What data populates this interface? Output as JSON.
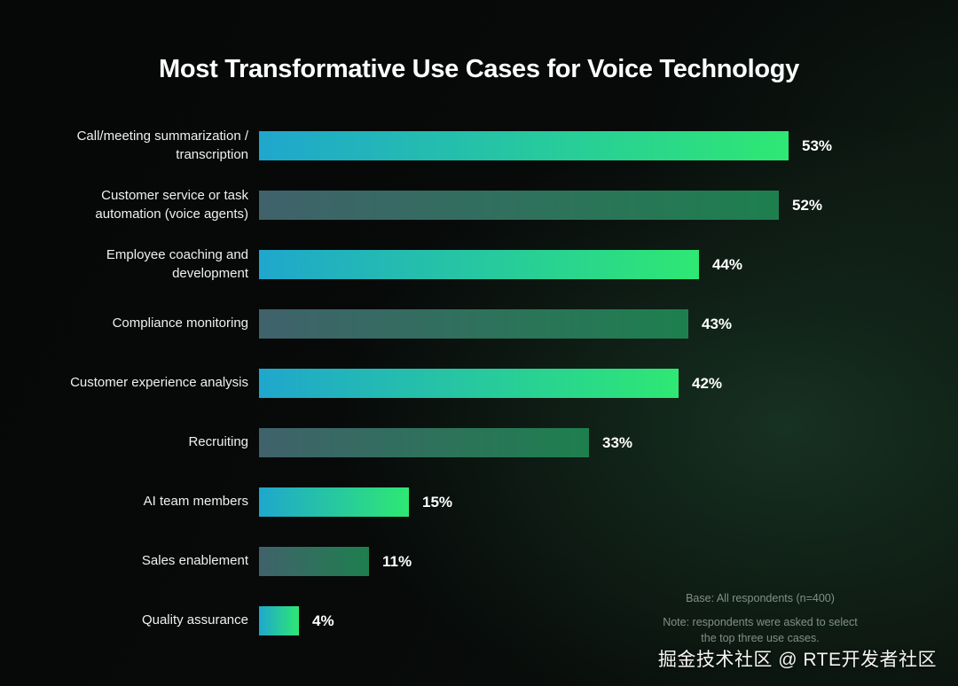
{
  "title": "Most Transformative Use Cases for Voice Technology",
  "chart_data": {
    "type": "bar",
    "orientation": "horizontal",
    "title": "Most Transformative Use Cases for Voice Technology",
    "categories": [
      "Call/meeting summarization / transcription",
      "Customer service or task automation (voice agents)",
      "Employee coaching and development",
      "Compliance monitoring",
      "Customer experience analysis",
      "Recruiting",
      "AI team members",
      "Sales enablement",
      "Quality assurance"
    ],
    "values": [
      53,
      52,
      44,
      43,
      42,
      33,
      15,
      11,
      4
    ],
    "value_labels": [
      "53%",
      "52%",
      "44%",
      "43%",
      "42%",
      "33%",
      "15%",
      "11%",
      "4%"
    ],
    "unit": "%",
    "xlim": [
      0,
      53
    ],
    "grid": false,
    "legend": "none",
    "bar_styles": [
      "bright",
      "dark",
      "bright",
      "dark",
      "bright",
      "dark",
      "bright",
      "dark",
      "bright"
    ]
  },
  "footnotes": {
    "base": "Base: All respondents (n=400)",
    "note": "Note: respondents were asked to select the top three use cases."
  },
  "watermark": "掘金技术社区 @ RTE开发者社区",
  "colors": {
    "bright_bar_start": "#1fa7cd",
    "bright_bar_end": "#2ee873",
    "dark_bar_start": "#40626b",
    "dark_bar_end": "#1e7f4e",
    "background": "#070a08",
    "glow": "#224e34",
    "note_text": "#7f9188",
    "title_text": "#ffffff"
  }
}
